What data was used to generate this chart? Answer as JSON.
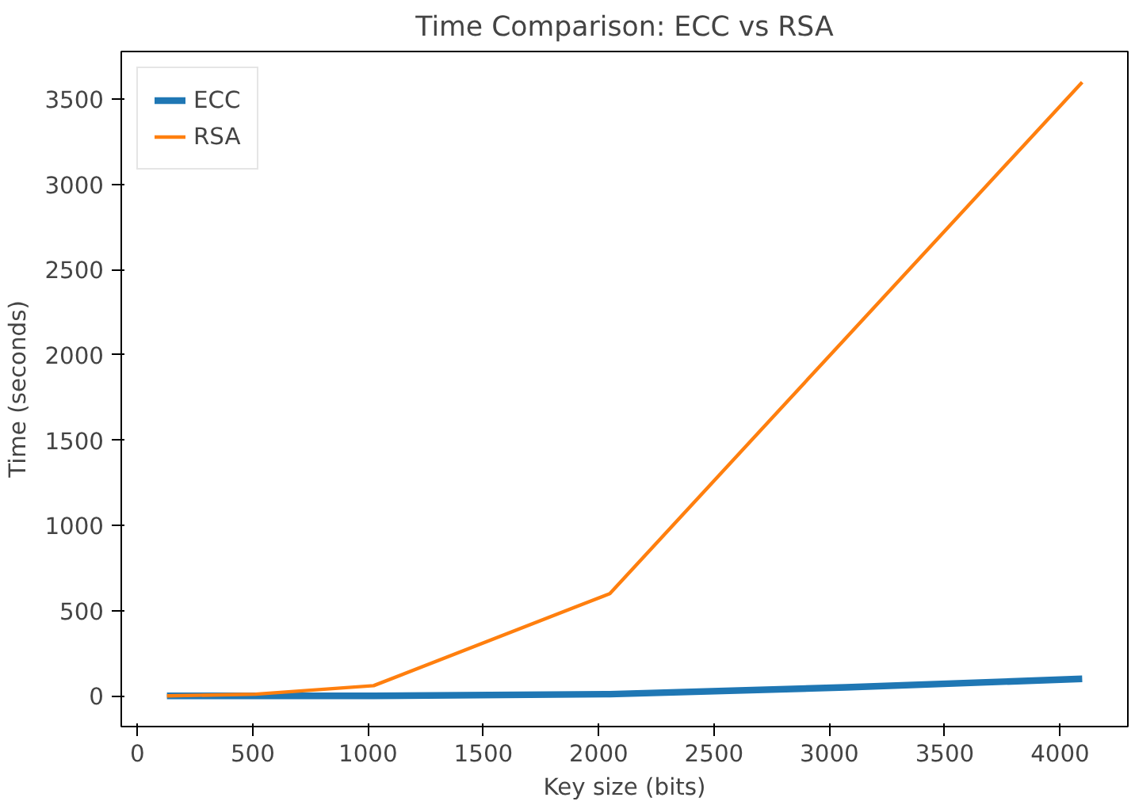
{
  "chart_data": {
    "type": "line",
    "title": "Time Comparison: ECC vs RSA",
    "xlabel": "Key size (bits)",
    "ylabel": "Time (seconds)",
    "x": [
      128,
      512,
      1024,
      2048,
      3072,
      4096
    ],
    "series": [
      {
        "name": "ECC",
        "color": "#1f77b4",
        "values": [
          0,
          0,
          0,
          10,
          50,
          100
        ]
      },
      {
        "name": "RSA",
        "color": "#ff7f0e",
        "values": [
          0,
          10,
          60,
          600,
          2100,
          3600
        ]
      }
    ],
    "xlim": [
      -70,
      4294
    ],
    "ylim": [
      -180,
      3780
    ],
    "xticks": [
      0,
      500,
      1000,
      1500,
      2000,
      2500,
      3000,
      3500,
      4000
    ],
    "yticks": [
      0,
      500,
      1000,
      1500,
      2000,
      2500,
      3000,
      3500
    ],
    "legend": "top left",
    "grid": false,
    "marker": "none",
    "line_style": "solid"
  }
}
